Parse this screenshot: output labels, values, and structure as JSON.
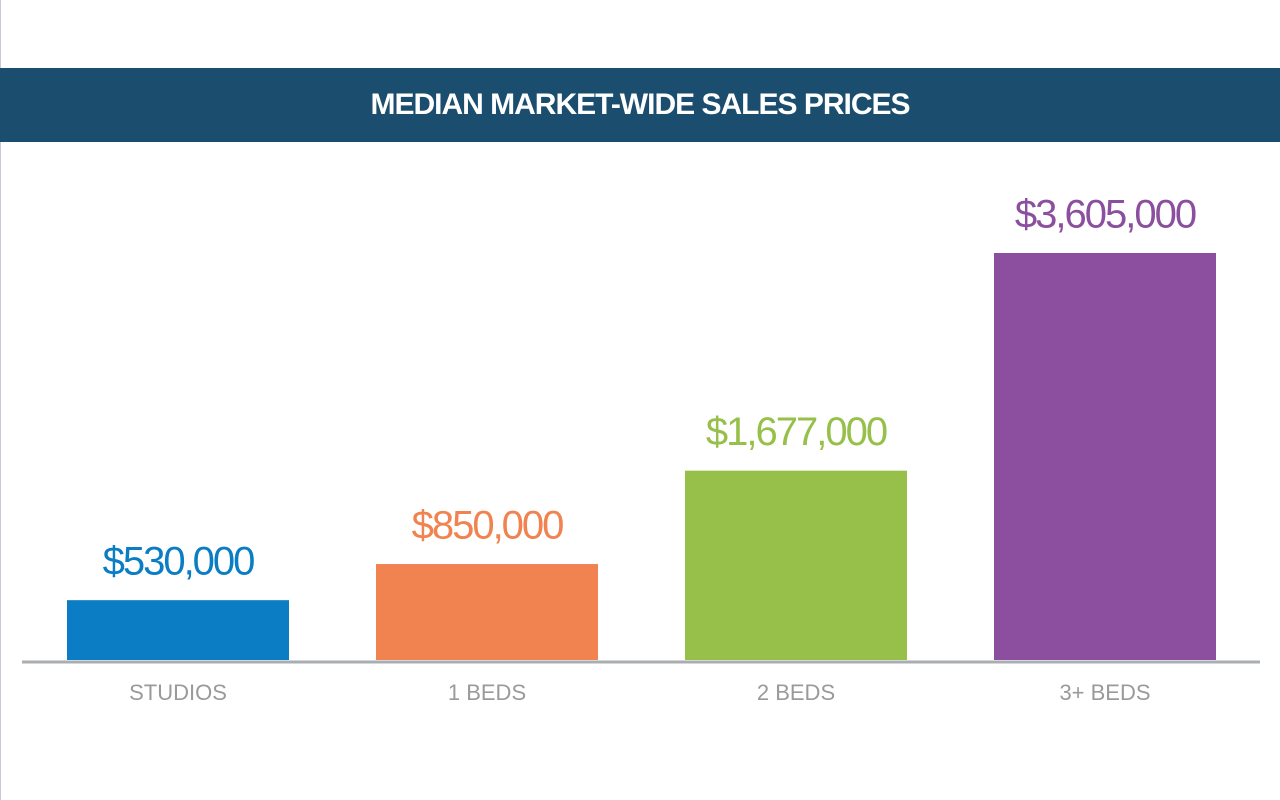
{
  "chart_data": {
    "type": "bar",
    "title": "MEDIAN MARKET-WIDE SALES PRICES",
    "categories": [
      "STUDIOS",
      "1 BEDS",
      "2 BEDS",
      "3+ BEDS"
    ],
    "values": [
      530000,
      850000,
      1677000,
      3605000
    ],
    "value_labels": [
      "$530,000",
      "$850,000",
      "$1,677,000",
      "$3,605,000"
    ],
    "colors": [
      "#0b7dc4",
      "#f0834f",
      "#97c04a",
      "#8c4e9e"
    ]
  }
}
